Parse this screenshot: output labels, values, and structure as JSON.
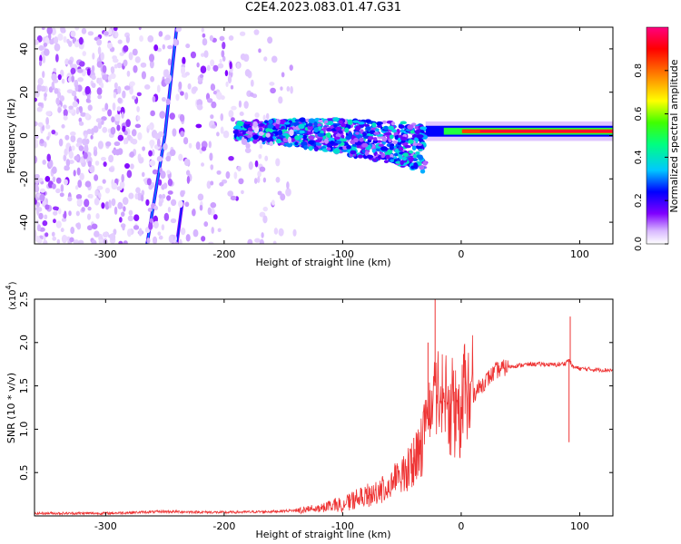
{
  "title": "C2E4.2023.083.01.47.G31",
  "chart_data": [
    {
      "type": "heatmap",
      "xlabel": "Height of straight line (km)",
      "ylabel": "Frequency (Hz)",
      "xlim": [
        -360,
        128
      ],
      "ylim": [
        -50,
        50
      ],
      "xticks": [
        -300,
        -200,
        -100,
        0,
        100
      ],
      "xtick_labels": [
        "-300",
        "-200",
        "-100",
        "0",
        "100"
      ],
      "yticks": [
        -40,
        -20,
        0,
        20,
        40
      ],
      "ytick_labels": [
        "-40",
        "-20",
        "0",
        "20",
        "40"
      ],
      "colorbar": {
        "label": "Normalized spectral amplitude",
        "range": [
          0,
          1
        ],
        "ticks": [
          0.0,
          0.2,
          0.4,
          0.6,
          0.8
        ],
        "tick_labels": [
          "0.0",
          "0.2",
          "0.4",
          "0.6",
          "0.8"
        ],
        "colormap": [
          "#ffffff",
          "#d8b8ff",
          "#8000ff",
          "#0000ff",
          "#00c8ff",
          "#00ff80",
          "#40ff00",
          "#ffff00",
          "#ff8000",
          "#ff0000",
          "#ff0080"
        ]
      },
      "features": [
        {
          "name": "strong carrier",
          "x_range": [
            -30,
            128
          ],
          "freq_hz": 2,
          "amplitude": 0.95
        },
        {
          "name": "spread band",
          "x_range": [
            -190,
            -30
          ],
          "freq_range_hz": [
            -25,
            8
          ],
          "amplitude": 0.35
        },
        {
          "name": "streak",
          "points": [
            [
              -265,
              -50
            ],
            [
              -250,
              0
            ],
            [
              -240,
              50
            ]
          ],
          "amplitude": 0.25
        },
        {
          "name": "streak",
          "points": [
            [
              -240,
              -50
            ],
            [
              -235,
              -30
            ]
          ],
          "amplitude": 0.2
        },
        {
          "name": "speckle noise",
          "x_range": [
            -360,
            -140
          ],
          "freq_range_hz": [
            -50,
            50
          ],
          "amplitude": 0.1
        }
      ]
    },
    {
      "type": "line",
      "xlabel": "Height of straight line (km)",
      "ylabel": "SNR (10 * v/v)",
      "y_exponent_label": "(x10",
      "y_exponent": "4",
      "y_exponent_close": ")",
      "xlim": [
        -360,
        128
      ],
      "ylim": [
        0,
        2.5
      ],
      "xticks": [
        -300,
        -200,
        -100,
        0,
        100
      ],
      "xtick_labels": [
        "-300",
        "-200",
        "-100",
        "0",
        "100"
      ],
      "yticks": [
        0.5,
        1.0,
        1.5,
        2.0,
        2.5
      ],
      "ytick_labels": [
        "0.5",
        "1.0",
        "1.5",
        "2.0",
        "2.5"
      ],
      "color": "#ee3333",
      "series": [
        {
          "x": [
            -360,
            -300,
            -250,
            -200,
            -160,
            -130,
            -110,
            -100,
            -90,
            -80,
            -70,
            -60,
            -50,
            -40,
            -35,
            -30,
            -25,
            -22,
            -20,
            -15,
            -10,
            -5,
            0,
            10,
            20,
            30,
            40,
            50,
            60,
            70,
            80,
            88,
            90,
            92,
            94,
            100,
            110,
            128
          ],
          "y": [
            0.03,
            0.03,
            0.05,
            0.04,
            0.05,
            0.07,
            0.12,
            0.14,
            0.18,
            0.22,
            0.28,
            0.35,
            0.45,
            0.6,
            0.8,
            1.0,
            1.3,
            1.5,
            1.4,
            1.3,
            1.2,
            1.25,
            1.3,
            1.4,
            1.55,
            1.68,
            1.72,
            1.74,
            1.75,
            1.75,
            1.74,
            1.76,
            1.8,
            1.78,
            1.72,
            1.7,
            1.69,
            1.68
          ],
          "spikes": [
            {
              "x": -22,
              "y": 2.5
            },
            {
              "x": -28,
              "y": 2.0
            },
            {
              "x": -40,
              "y": 0.9
            },
            {
              "x": 92,
              "y": 2.3
            },
            {
              "x": 91,
              "y": 0.85
            }
          ]
        }
      ]
    }
  ]
}
